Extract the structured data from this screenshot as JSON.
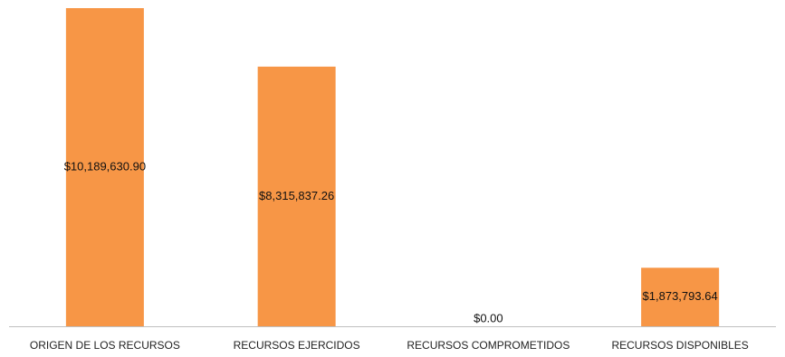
{
  "chart_data": {
    "type": "bar",
    "categories": [
      "ORIGEN DE LOS RECURSOS",
      "RECURSOS EJERCIDOS",
      "RECURSOS COMPROMETIDOS",
      "RECURSOS DISPONIBLES"
    ],
    "values": [
      10189630.9,
      8315837.26,
      0.0,
      1873793.64
    ],
    "data_labels": [
      "$10,189,630.90",
      "$8,315,837.26",
      "$0.00",
      "$1,873,793.64"
    ],
    "bar_color": "#F79646",
    "axis_color": "#BFBFBF",
    "title": "",
    "xlabel": "",
    "ylabel": "",
    "ylim": [
      0,
      10189630.9
    ],
    "grid": false,
    "legend": "none"
  }
}
